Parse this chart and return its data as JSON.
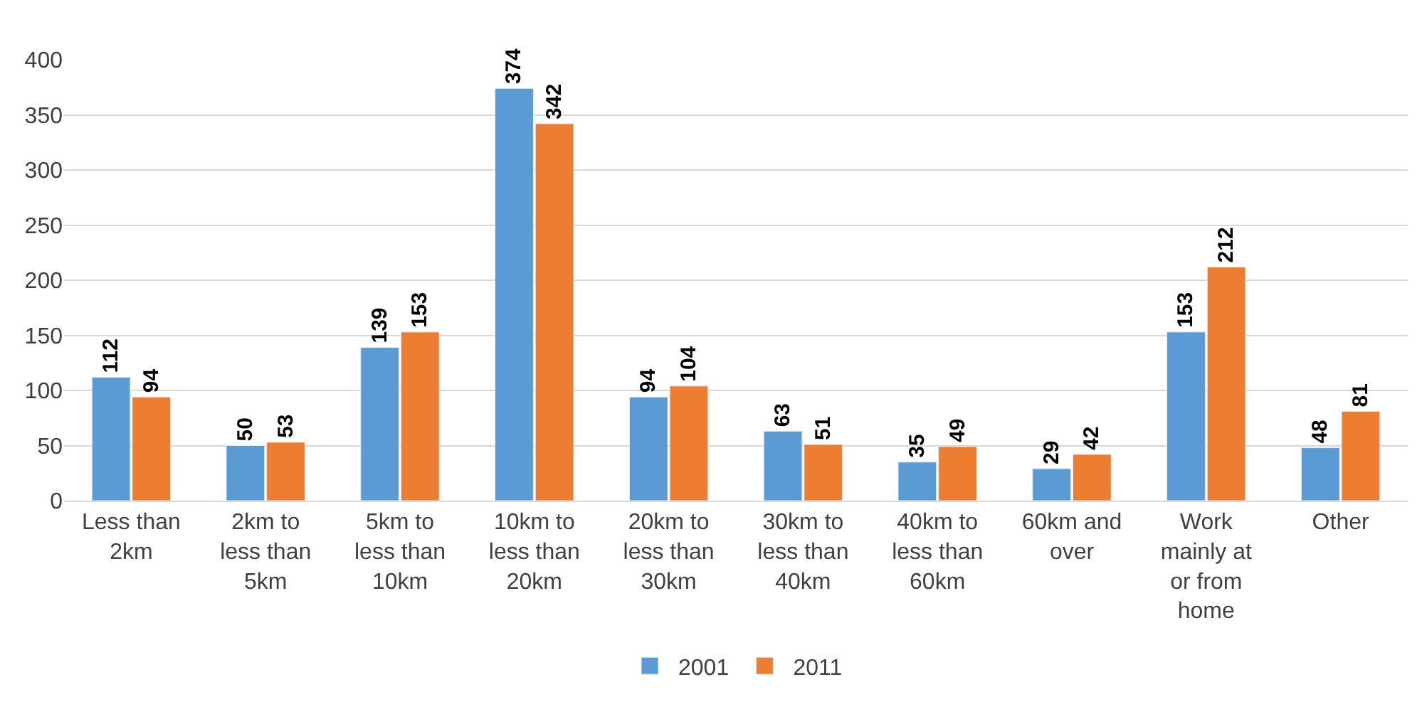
{
  "chart_data": {
    "type": "bar",
    "categories": [
      "Less than 2km",
      "2km to less than 5km",
      "5km to less than 10km",
      "10km to less than 20km",
      "20km to less than 30km",
      "30km to less than 40km",
      "40km to less than 60km",
      "60km and over",
      "Work mainly at or from home",
      "Other"
    ],
    "series": [
      {
        "name": "2001",
        "color": "#5b9bd5",
        "values": [
          112,
          50,
          139,
          374,
          94,
          63,
          35,
          29,
          153,
          48
        ]
      },
      {
        "name": "2011",
        "color": "#ed7d31",
        "values": [
          94,
          53,
          153,
          342,
          104,
          51,
          49,
          42,
          212,
          81
        ]
      }
    ],
    "ylim": [
      0,
      400
    ],
    "yticks": [
      0,
      50,
      100,
      150,
      200,
      250,
      300,
      350,
      400
    ],
    "grid": "y",
    "legend": "bottom",
    "data_labels": true
  }
}
